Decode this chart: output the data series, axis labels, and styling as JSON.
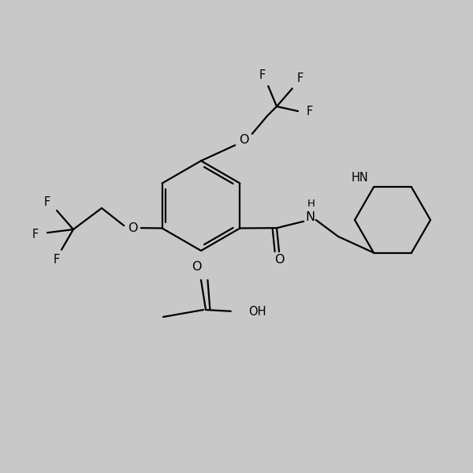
{
  "bg_color": "#c8c8c8",
  "line_color": "#000000",
  "text_color": "#000000",
  "line_width": 1.6,
  "font_size": 10.5,
  "figsize": [
    6.0,
    6.0
  ],
  "dpi": 100,
  "xlim": [
    0,
    10
  ],
  "ylim": [
    0,
    10
  ]
}
